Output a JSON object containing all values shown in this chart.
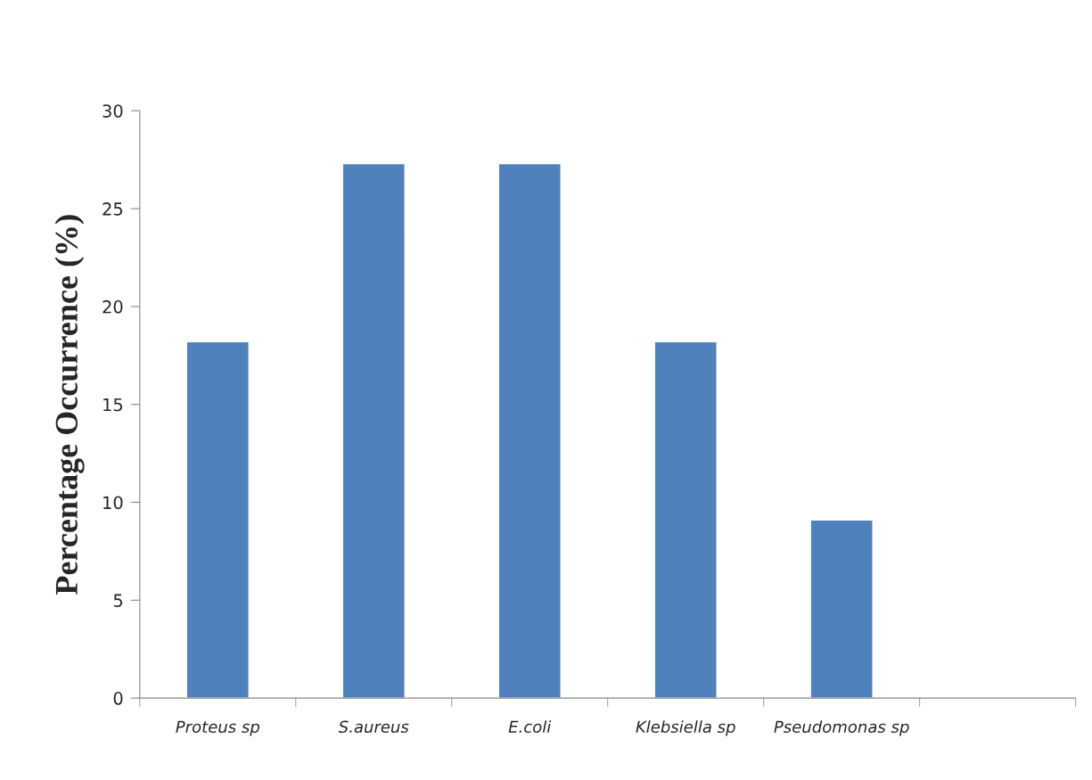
{
  "chart_data": {
    "type": "bar",
    "ylabel": "Percentage Occurrence (%)",
    "categories": [
      "Proteus sp",
      "S.aureus",
      "E.coli",
      "Klebsiella sp",
      "Pseudomonas sp",
      null
    ],
    "values": [
      18.2,
      27.3,
      27.3,
      18.2,
      9.1,
      null
    ],
    "color": "#4f81bd",
    "ylim": [
      0,
      30
    ],
    "yticks": [
      0,
      5,
      10,
      15,
      20,
      25,
      30
    ],
    "grid": false,
    "legend": false
  }
}
